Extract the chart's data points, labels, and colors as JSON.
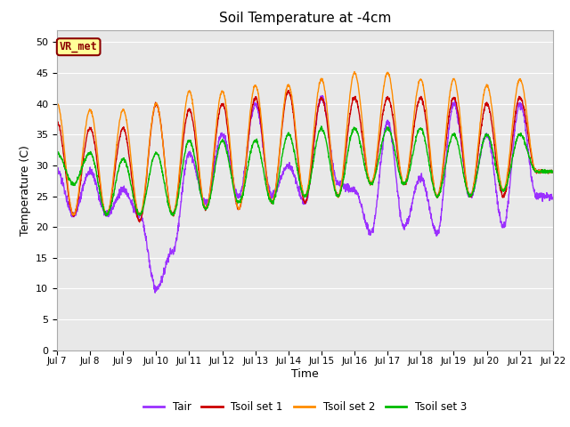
{
  "title": "Soil Temperature at -4cm",
  "xlabel": "Time",
  "ylabel": "Temperature (C)",
  "ylim": [
    0,
    52
  ],
  "yticks": [
    0,
    5,
    10,
    15,
    20,
    25,
    30,
    35,
    40,
    45,
    50
  ],
  "xtick_labels": [
    "Jul 7",
    "Jul 8",
    "Jul 9",
    "Jul 10",
    "Jul 11",
    "Jul 12",
    "Jul 13",
    "Jul 14",
    "Jul 15",
    "Jul 16",
    "Jul 17",
    "Jul 18",
    "Jul 19",
    "Jul 20",
    "Jul 21",
    "Jul 22"
  ],
  "colors": {
    "Tair": "#9B30FF",
    "Tsoil1": "#CC0000",
    "Tsoil2": "#FF8C00",
    "Tsoil3": "#00BB00"
  },
  "background_plot": "#E8E8E8",
  "background_fig": "#FFFFFF",
  "annotation_text": "VR_met",
  "annotation_color": "#8B0000",
  "annotation_bg": "#FFFF99",
  "legend_labels": [
    "Tair",
    "Tsoil set 1",
    "Tsoil set 2",
    "Tsoil set 3"
  ],
  "n_days": 15,
  "points_per_day": 144,
  "tair_peaks": [
    29,
    22,
    29,
    22,
    26,
    22,
    10,
    16,
    32,
    24,
    35,
    25,
    40,
    25,
    30,
    24,
    41,
    27,
    26,
    19,
    37,
    20,
    28,
    19,
    40,
    25,
    35,
    20,
    40,
    25
  ],
  "tsoil1_peaks": [
    37,
    22,
    36,
    22,
    36,
    21,
    40,
    22,
    39,
    23,
    40,
    23,
    41,
    24,
    42,
    24,
    41,
    25,
    41,
    27,
    41,
    27,
    41,
    25,
    41,
    25,
    40,
    25,
    41,
    29
  ],
  "tsoil2_peaks": [
    40,
    22,
    39,
    22,
    39,
    22,
    40,
    22,
    42,
    23,
    42,
    23,
    43,
    24,
    43,
    25,
    44,
    25,
    45,
    27,
    45,
    27,
    44,
    25,
    44,
    25,
    43,
    26,
    44,
    29
  ],
  "tsoil3_peaks": [
    32,
    27,
    32,
    22,
    31,
    22,
    32,
    22,
    34,
    23,
    34,
    24,
    34,
    24,
    35,
    25,
    36,
    25,
    36,
    27,
    36,
    27,
    36,
    25,
    35,
    25,
    35,
    26,
    35,
    29
  ]
}
